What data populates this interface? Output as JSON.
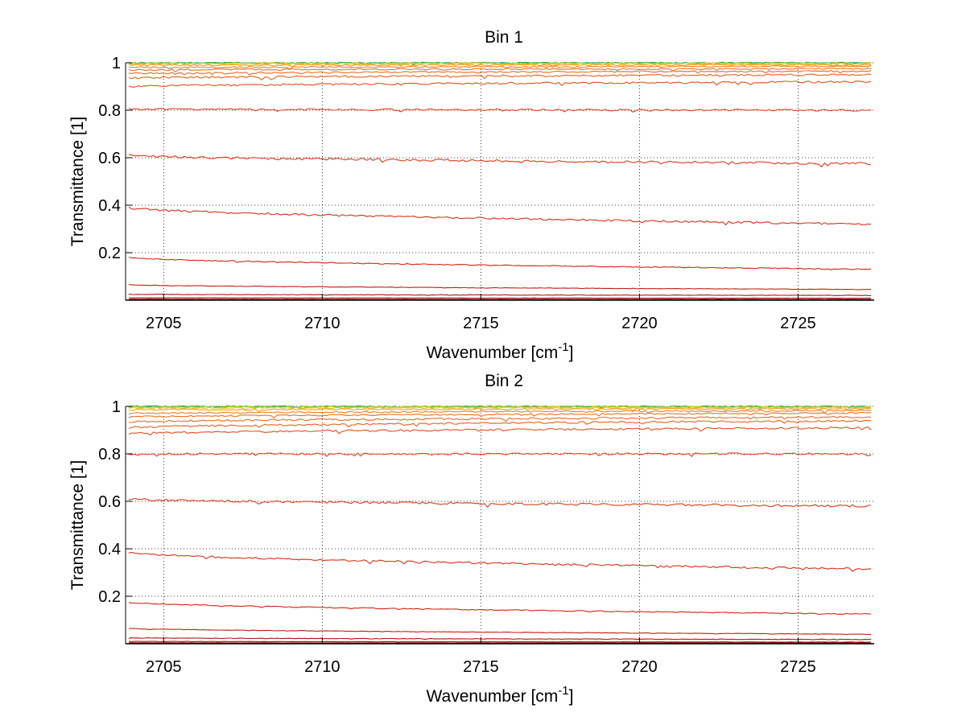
{
  "chart_data": [
    {
      "type": "line",
      "title": "Bin 1",
      "xlabel": "Wavenumber [cm",
      "xlabel_sup": "-1",
      "xlabel_end": "]",
      "ylabel": "Transmittance [1]",
      "xlim": [
        2703.8,
        2727.4
      ],
      "ylim": [
        0.0,
        1.0
      ],
      "xticks": [
        2705,
        2710,
        2715,
        2720,
        2725
      ],
      "xtick_labels": [
        "2705",
        "2710",
        "2715",
        "2720",
        "2725"
      ],
      "yticks": [
        0.2,
        0.4,
        0.6,
        0.8,
        1.0
      ],
      "ytick_labels": [
        "0.2",
        "0.4",
        "0.6",
        "0.8",
        "1"
      ],
      "grid": true,
      "series": [
        {
          "color": "#17becf",
          "start": 1.0,
          "end": 1.0,
          "noise": 0.003
        },
        {
          "color": "#2ca02c",
          "start": 0.999,
          "end": 0.999,
          "noise": 0.003
        },
        {
          "color": "#d4d400",
          "start": 0.998,
          "end": 0.998,
          "noise": 0.003
        },
        {
          "color": "#f0c020",
          "start": 0.996,
          "end": 0.996,
          "noise": 0.003
        },
        {
          "color": "#f0a020",
          "start": 0.99,
          "end": 0.991,
          "noise": 0.003
        },
        {
          "color": "#f08020",
          "start": 0.98,
          "end": 0.985,
          "noise": 0.003
        },
        {
          "color": "#ee7020",
          "start": 0.97,
          "end": 0.975,
          "noise": 0.003
        },
        {
          "color": "#ec6a1e",
          "start": 0.955,
          "end": 0.965,
          "noise": 0.003
        },
        {
          "color": "#e8601c",
          "start": 0.935,
          "end": 0.95,
          "noise": 0.004
        },
        {
          "color": "#e4501a",
          "start": 0.9,
          "end": 0.92,
          "noise": 0.004
        },
        {
          "color": "#e04018",
          "start": 0.805,
          "end": 0.8,
          "noise": 0.004
        },
        {
          "color": "#dc3a16",
          "start": 0.61,
          "end": 0.575,
          "noise": 0.005
        },
        {
          "color": "#d83014",
          "start": 0.39,
          "end": 0.32,
          "noise": 0.004
        },
        {
          "color": "#cc2810",
          "start": 0.18,
          "end": 0.13,
          "noise": 0.002
        },
        {
          "color": "#c0200e",
          "start": 0.065,
          "end": 0.045,
          "noise": 0.001
        },
        {
          "color": "#b0180c",
          "start": 0.025,
          "end": 0.02,
          "noise": 0.001
        },
        {
          "color": "#a0100a",
          "start": 0.01,
          "end": 0.008,
          "noise": 0.0005
        },
        {
          "color": "#900808",
          "start": 0.004,
          "end": 0.003,
          "noise": 0.0003
        },
        {
          "color": "#800000",
          "start": 0.001,
          "end": 0.001,
          "noise": 0.0001
        }
      ]
    },
    {
      "type": "line",
      "title": "Bin 2",
      "xlabel": "Wavenumber [cm",
      "xlabel_sup": "-1",
      "xlabel_end": "]",
      "ylabel": "Transmittance [1]",
      "xlim": [
        2703.8,
        2727.4
      ],
      "ylim": [
        0.0,
        1.0
      ],
      "xticks": [
        2705,
        2710,
        2715,
        2720,
        2725
      ],
      "xtick_labels": [
        "2705",
        "2710",
        "2715",
        "2720",
        "2725"
      ],
      "yticks": [
        0.2,
        0.4,
        0.6,
        0.8,
        1.0
      ],
      "ytick_labels": [
        "0.2",
        "0.4",
        "0.6",
        "0.8",
        "1"
      ],
      "grid": true,
      "series": [
        {
          "color": "#17becf",
          "start": 1.0,
          "end": 1.0,
          "noise": 0.003
        },
        {
          "color": "#2ca02c",
          "start": 0.999,
          "end": 0.999,
          "noise": 0.003
        },
        {
          "color": "#d4d400",
          "start": 0.997,
          "end": 0.998,
          "noise": 0.003
        },
        {
          "color": "#f0c020",
          "start": 0.993,
          "end": 0.995,
          "noise": 0.003
        },
        {
          "color": "#f0a020",
          "start": 0.985,
          "end": 0.99,
          "noise": 0.003
        },
        {
          "color": "#f08020",
          "start": 0.97,
          "end": 0.982,
          "noise": 0.003
        },
        {
          "color": "#ee7020",
          "start": 0.955,
          "end": 0.972,
          "noise": 0.003
        },
        {
          "color": "#ec6a1e",
          "start": 0.935,
          "end": 0.955,
          "noise": 0.004
        },
        {
          "color": "#e8601c",
          "start": 0.91,
          "end": 0.94,
          "noise": 0.004
        },
        {
          "color": "#e4501a",
          "start": 0.885,
          "end": 0.91,
          "noise": 0.004
        },
        {
          "color": "#e04018",
          "start": 0.8,
          "end": 0.8,
          "noise": 0.004
        },
        {
          "color": "#dc3a16",
          "start": 0.61,
          "end": 0.58,
          "noise": 0.005
        },
        {
          "color": "#d83014",
          "start": 0.385,
          "end": 0.315,
          "noise": 0.004
        },
        {
          "color": "#cc2810",
          "start": 0.175,
          "end": 0.125,
          "noise": 0.002
        },
        {
          "color": "#c0200e",
          "start": 0.065,
          "end": 0.04,
          "noise": 0.001
        },
        {
          "color": "#b0180c",
          "start": 0.025,
          "end": 0.018,
          "noise": 0.001
        },
        {
          "color": "#a0100a",
          "start": 0.01,
          "end": 0.007,
          "noise": 0.0005
        },
        {
          "color": "#900808",
          "start": 0.004,
          "end": 0.003,
          "noise": 0.0003
        },
        {
          "color": "#800000",
          "start": 0.001,
          "end": 0.001,
          "noise": 0.0001
        }
      ]
    }
  ]
}
